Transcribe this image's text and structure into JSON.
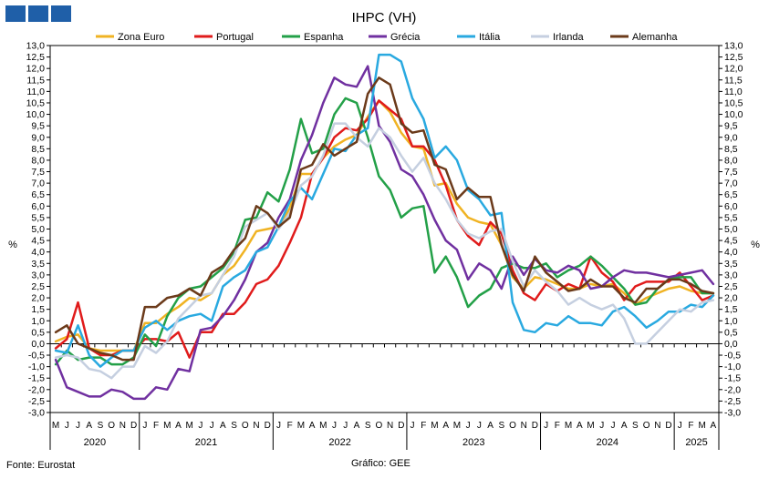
{
  "chart_data": {
    "type": "line",
    "title": "IHPC (VH)",
    "ylabel": "%",
    "ylim": [
      -3,
      13
    ],
    "ystep": 0.5,
    "grid": false,
    "legend_position": "top",
    "months": [
      "M",
      "J",
      "J",
      "A",
      "S",
      "O",
      "N",
      "D",
      "J",
      "F",
      "M",
      "A",
      "M",
      "J",
      "J",
      "A",
      "S",
      "O",
      "N",
      "D",
      "J",
      "F",
      "M",
      "A",
      "M",
      "J",
      "J",
      "A",
      "S",
      "O",
      "N",
      "D",
      "J",
      "F",
      "M",
      "A",
      "M",
      "J",
      "J",
      "A",
      "S",
      "O",
      "N",
      "D",
      "J",
      "F",
      "M",
      "A",
      "M",
      "J",
      "J",
      "A",
      "S",
      "O",
      "N",
      "D",
      "J",
      "F",
      "M",
      "A"
    ],
    "years": [
      {
        "label": "2020",
        "start": 0,
        "count": 8
      },
      {
        "label": "2021",
        "start": 8,
        "count": 12
      },
      {
        "label": "2022",
        "start": 20,
        "count": 12
      },
      {
        "label": "2023",
        "start": 32,
        "count": 12
      },
      {
        "label": "2024",
        "start": 44,
        "count": 12
      },
      {
        "label": "2025",
        "start": 56,
        "count": 4
      }
    ],
    "series": [
      {
        "name": "Zona Euro",
        "color": "#f0b323",
        "values": [
          0.1,
          0.3,
          0.4,
          -0.2,
          -0.3,
          -0.3,
          -0.3,
          -0.3,
          0.9,
          0.9,
          1.3,
          1.6,
          2.0,
          1.9,
          2.2,
          3.0,
          3.4,
          4.1,
          4.9,
          5.0,
          5.1,
          5.9,
          7.4,
          7.4,
          8.1,
          8.6,
          8.9,
          9.1,
          9.9,
          10.6,
          10.1,
          9.2,
          8.6,
          8.5,
          6.9,
          7.0,
          6.1,
          5.5,
          5.3,
          5.2,
          4.3,
          2.9,
          2.4,
          2.9,
          2.8,
          2.6,
          2.4,
          2.4,
          2.6,
          2.5,
          2.6,
          2.2,
          1.7,
          2.0,
          2.2,
          2.4,
          2.5,
          2.3,
          2.2,
          2.2
        ]
      },
      {
        "name": "Portugal",
        "color": "#e01b1b",
        "values": [
          -0.2,
          0.2,
          1.8,
          -0.2,
          -0.5,
          -0.5,
          -0.3,
          -0.3,
          0.2,
          0.2,
          0.1,
          0.5,
          -0.6,
          0.5,
          0.5,
          1.3,
          1.3,
          1.8,
          2.6,
          2.8,
          3.4,
          4.4,
          5.5,
          7.4,
          8.1,
          9.0,
          9.4,
          9.3,
          9.8,
          10.6,
          10.2,
          9.8,
          8.6,
          8.6,
          8.0,
          6.9,
          5.4,
          4.7,
          4.3,
          5.3,
          4.8,
          3.2,
          2.2,
          1.9,
          2.6,
          2.3,
          2.6,
          2.4,
          3.8,
          3.1,
          2.7,
          1.9,
          2.5,
          2.7,
          2.7,
          2.7,
          3.1,
          2.5,
          1.9,
          2.1
        ]
      },
      {
        "name": "Espanha",
        "color": "#23a048",
        "values": [
          -0.9,
          -0.3,
          -0.7,
          -0.6,
          -0.6,
          -0.9,
          -0.9,
          -0.6,
          0.4,
          -0.1,
          1.2,
          2.0,
          2.4,
          2.5,
          2.9,
          3.3,
          4.0,
          5.4,
          5.5,
          6.6,
          6.2,
          7.6,
          9.8,
          8.3,
          8.5,
          10.0,
          10.7,
          10.5,
          9.0,
          7.3,
          6.7,
          5.5,
          5.9,
          6.0,
          3.1,
          3.8,
          2.9,
          1.6,
          2.1,
          2.4,
          3.3,
          3.5,
          3.3,
          3.3,
          3.5,
          2.9,
          3.2,
          3.4,
          3.8,
          3.4,
          2.9,
          2.4,
          1.7,
          1.8,
          2.4,
          2.8,
          2.9,
          2.9,
          2.2,
          2.2
        ]
      },
      {
        "name": "Grécia",
        "color": "#7030a0",
        "values": [
          -0.7,
          -1.9,
          -2.1,
          -2.3,
          -2.3,
          -2.0,
          -2.1,
          -2.4,
          -2.4,
          -1.9,
          -2.0,
          -1.1,
          -1.2,
          0.6,
          0.7,
          1.2,
          1.9,
          2.8,
          4.0,
          4.4,
          5.5,
          6.3,
          8.0,
          9.1,
          10.5,
          11.6,
          11.3,
          11.2,
          12.1,
          9.5,
          8.8,
          7.6,
          7.3,
          6.5,
          5.4,
          4.5,
          4.1,
          2.8,
          3.5,
          3.2,
          2.4,
          3.8,
          3.0,
          3.7,
          3.2,
          3.1,
          3.4,
          3.2,
          2.4,
          2.5,
          2.9,
          3.2,
          3.1,
          3.1,
          3.0,
          2.9,
          3.0,
          3.1,
          3.2,
          2.6
        ]
      },
      {
        "name": "Itália",
        "color": "#29a9e0",
        "values": [
          -0.3,
          -0.4,
          0.8,
          -0.5,
          -1.0,
          -0.6,
          -0.3,
          -0.3,
          0.7,
          1.0,
          0.6,
          1.0,
          1.2,
          1.3,
          1.0,
          2.5,
          2.9,
          3.2,
          4.0,
          4.2,
          5.1,
          6.2,
          6.8,
          6.3,
          7.4,
          8.5,
          8.4,
          9.1,
          9.4,
          12.6,
          12.6,
          12.3,
          10.7,
          9.8,
          8.1,
          8.6,
          8.0,
          6.7,
          6.3,
          5.6,
          5.7,
          1.8,
          0.6,
          0.5,
          0.9,
          0.8,
          1.2,
          0.9,
          0.9,
          0.8,
          1.4,
          1.6,
          1.2,
          0.7,
          1.0,
          1.4,
          1.4,
          1.7,
          1.6,
          2.1
        ]
      },
      {
        "name": "Irlanda",
        "color": "#c5cfe0",
        "values": [
          -0.6,
          -0.5,
          -0.6,
          -1.1,
          -1.2,
          -1.5,
          -1.0,
          -1.0,
          -0.1,
          -0.4,
          0.1,
          1.1,
          1.6,
          2.1,
          2.2,
          3.0,
          3.8,
          5.1,
          5.4,
          5.7,
          5.0,
          5.7,
          6.9,
          7.3,
          8.2,
          9.6,
          9.6,
          9.0,
          8.6,
          9.4,
          9.0,
          8.2,
          7.5,
          8.1,
          7.0,
          6.3,
          5.4,
          4.8,
          4.6,
          4.9,
          5.0,
          3.6,
          2.5,
          3.2,
          2.7,
          2.3,
          1.7,
          2.0,
          1.7,
          1.5,
          1.7,
          1.1,
          0.0,
          0.0,
          0.5,
          1.0,
          1.5,
          1.4,
          1.8,
          1.9
        ]
      },
      {
        "name": "Alemanha",
        "color": "#6b3a1a",
        "values": [
          0.5,
          0.8,
          0.0,
          -0.2,
          -0.4,
          -0.5,
          -0.7,
          -0.7,
          1.6,
          1.6,
          2.0,
          2.1,
          2.4,
          2.1,
          3.1,
          3.4,
          4.1,
          4.6,
          6.0,
          5.7,
          5.1,
          5.5,
          7.6,
          7.8,
          8.7,
          8.2,
          8.5,
          8.8,
          10.9,
          11.6,
          11.3,
          9.6,
          9.2,
          9.3,
          7.8,
          7.6,
          6.3,
          6.8,
          6.4,
          6.4,
          4.3,
          3.0,
          2.3,
          3.8,
          3.1,
          2.7,
          2.3,
          2.4,
          2.8,
          2.5,
          2.5,
          2.0,
          1.8,
          2.4,
          2.4,
          2.8,
          2.8,
          2.6,
          2.3,
          2.2
        ]
      }
    ]
  },
  "footer": {
    "source": "Fonte: Eurostat",
    "credit": "Gráfico: GEE"
  }
}
